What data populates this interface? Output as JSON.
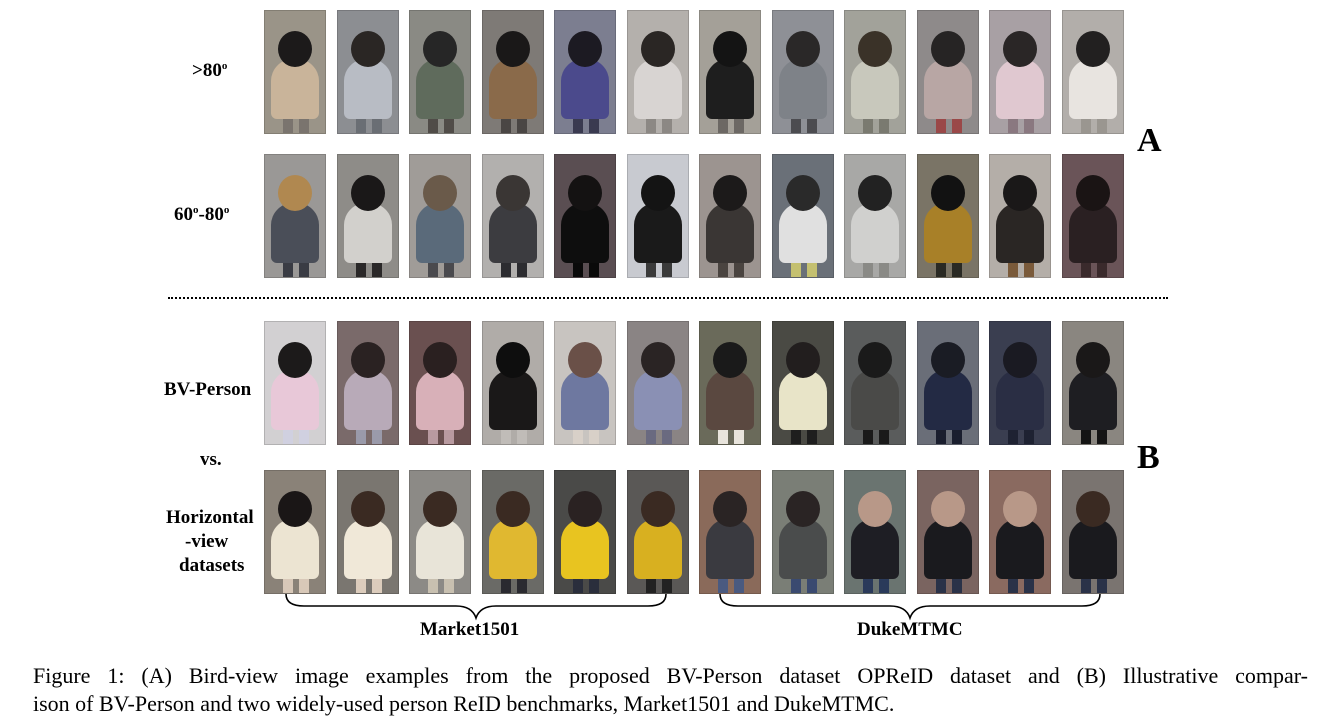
{
  "panel_a": {
    "letter": "A",
    "row1_label": ">80",
    "row1_sup": "o",
    "row2_label_a": "60",
    "row2_sup_a": "o",
    "row2_label_b": "-80",
    "row2_sup_b": "o"
  },
  "panel_b": {
    "letter": "B",
    "label_bv": "BV-Person",
    "label_vs": "vs.",
    "label_h1": "Horizontal",
    "label_h2": "-view",
    "label_h3": "datasets",
    "brace_left_label": "Market1501",
    "brace_right_label": "DukeMTMC"
  },
  "caption": {
    "line1": "Figure 1: (A) Bird-view image examples from the proposed BV-Person dataset OPReID dataset and (B) Illustrative compar-",
    "line2": "ison of BV-Person and two widely-used person ReID benchmarks, Market1501 and DukeMTMC."
  },
  "thumbnails": {
    "row_a1": [
      {
        "bg": "#9a9488",
        "head": "#1c1a1a",
        "body": "#c9b49a",
        "leg": "#7a746e"
      },
      {
        "bg": "#8c8e92",
        "head": "#2a2624",
        "body": "#b8bcc4",
        "leg": "#6a6e74"
      },
      {
        "bg": "#8a8a84",
        "head": "#262626",
        "body": "#5f6b5c",
        "leg": "#504c48"
      },
      {
        "bg": "#7e7a76",
        "head": "#1a1818",
        "body": "#8a6a4a",
        "leg": "#4a4644"
      },
      {
        "bg": "#7c7e90",
        "head": "#1c1a22",
        "body": "#4b4a8c",
        "leg": "#3a3a50"
      },
      {
        "bg": "#b4b0ac",
        "head": "#2a2624",
        "body": "#d8d4d2",
        "leg": "#8c8884"
      },
      {
        "bg": "#a4a098",
        "head": "#141414",
        "body": "#1e1e1e",
        "leg": "#6c6864"
      },
      {
        "bg": "#8e9096",
        "head": "#2a2828",
        "body": "#7e8288",
        "leg": "#4c4c50"
      },
      {
        "bg": "#a2a29a",
        "head": "#3a3228",
        "body": "#c8c8bc",
        "leg": "#7a7a70"
      },
      {
        "bg": "#8e8a8a",
        "head": "#262424",
        "body": "#b8a6a4",
        "leg": "#9a4848"
      },
      {
        "bg": "#a8a0a4",
        "head": "#2a2626",
        "body": "#e0c8d0",
        "leg": "#8a7880"
      },
      {
        "bg": "#b2aeaa",
        "head": "#222020",
        "body": "#e8e4e0",
        "leg": "#9a9690"
      }
    ],
    "row_a2": [
      {
        "bg": "#9a9896",
        "head": "#b08850",
        "body": "#4a4e58",
        "leg": "#3a3c44"
      },
      {
        "bg": "#8e8c88",
        "head": "#1a1818",
        "body": "#d2d0cc",
        "leg": "#2a2828"
      },
      {
        "bg": "#a09c98",
        "head": "#6a5a4a",
        "body": "#5a6a7a",
        "leg": "#4a4a4e"
      },
      {
        "bg": "#b2b0ae",
        "head": "#3a3634",
        "body": "#3c3c40",
        "leg": "#2c2c30"
      },
      {
        "bg": "#5a4e52",
        "head": "#141212",
        "body": "#0e0e0e",
        "leg": "#0a0a0a"
      },
      {
        "bg": "#c8cad0",
        "head": "#141414",
        "body": "#1a1a1a",
        "leg": "#3a3a3a"
      },
      {
        "bg": "#9c9490",
        "head": "#1c1a1a",
        "body": "#3a3634",
        "leg": "#4a4440"
      },
      {
        "bg": "#6a7078",
        "head": "#2a2a2a",
        "body": "#e0e0e0",
        "leg": "#c4c070"
      },
      {
        "bg": "#a8a8a6",
        "head": "#222222",
        "body": "#d0d0ce",
        "leg": "#8a8a86"
      },
      {
        "bg": "#7a7466",
        "head": "#121212",
        "body": "#a88028",
        "leg": "#2a2a24"
      },
      {
        "bg": "#b4aea8",
        "head": "#1a1818",
        "body": "#2a2624",
        "leg": "#7a5a3a"
      },
      {
        "bg": "#6a5458",
        "head": "#1a1414",
        "body": "#2a2022",
        "leg": "#3a2a2c"
      }
    ],
    "row_b1": [
      {
        "bg": "#d2d0d2",
        "head": "#1c1a1a",
        "body": "#e8c8d8",
        "leg": "#d0d0e0"
      },
      {
        "bg": "#7a6a6a",
        "head": "#2a2222",
        "body": "#b8aab8",
        "leg": "#9a9aaa"
      },
      {
        "bg": "#6a5050",
        "head": "#2a2020",
        "body": "#d8b0b8",
        "leg": "#b89aa0"
      },
      {
        "bg": "#b0aca8",
        "head": "#0e0e0e",
        "body": "#1a1818",
        "leg": "#c0bcb8"
      },
      {
        "bg": "#c8c4c0",
        "head": "#6a5048",
        "body": "#6e78a0",
        "leg": "#d8d0c8"
      },
      {
        "bg": "#8a8484",
        "head": "#2a2424",
        "body": "#8a90b4",
        "leg": "#6a6a80"
      },
      {
        "bg": "#6a6a5a",
        "head": "#1a1a1a",
        "body": "#5a4840",
        "leg": "#e8e4dc"
      },
      {
        "bg": "#4a4a44",
        "head": "#221e1e",
        "body": "#e8e4c8",
        "leg": "#1e1e1e"
      },
      {
        "bg": "#5a5c5c",
        "head": "#1a1a1a",
        "body": "#4a4a48",
        "leg": "#1a1a1a"
      },
      {
        "bg": "#6a6e78",
        "head": "#1a1c24",
        "body": "#232a44",
        "leg": "#1a1e2e"
      },
      {
        "bg": "#3a3e50",
        "head": "#1a1a22",
        "body": "#2a2e44",
        "leg": "#1e2232"
      },
      {
        "bg": "#8a8680",
        "head": "#1a1818",
        "body": "#1e1e22",
        "leg": "#141414"
      }
    ],
    "row_b2": [
      {
        "bg": "#8a8278",
        "head": "#1a1616",
        "body": "#ece4d2",
        "leg": "#d8c8b8"
      },
      {
        "bg": "#7a7670",
        "head": "#3a2a22",
        "body": "#f0e8d8",
        "leg": "#dcccbc"
      },
      {
        "bg": "#8c8a86",
        "head": "#3a2a22",
        "body": "#e8e4d8",
        "leg": "#c8c0b0"
      },
      {
        "bg": "#6a6a66",
        "head": "#3a2a22",
        "body": "#e0b830",
        "leg": "#2a2a30"
      },
      {
        "bg": "#4a4a48",
        "head": "#2a2222",
        "body": "#e8c420",
        "leg": "#2a2e3c"
      },
      {
        "bg": "#5a5856",
        "head": "#3a2a22",
        "body": "#d8b020",
        "leg": "#222222"
      },
      {
        "bg": "#8a6a5a",
        "head": "#2a2424",
        "body": "#3a3a40",
        "leg": "#4a5a80"
      },
      {
        "bg": "#7a7e76",
        "head": "#2a2424",
        "body": "#4a4c4c",
        "leg": "#3a4a70"
      },
      {
        "bg": "#6a7470",
        "head": "#b89888",
        "body": "#1e1e24",
        "leg": "#2a3a5a"
      },
      {
        "bg": "#7a6460",
        "head": "#b89888",
        "body": "#1a1a1e",
        "leg": "#2a3248"
      },
      {
        "bg": "#8a6a60",
        "head": "#b89888",
        "body": "#1a1a1e",
        "leg": "#2a3248"
      },
      {
        "bg": "#7a7470",
        "head": "#3a2a22",
        "body": "#1a1a1e",
        "leg": "#2a3248"
      }
    ]
  }
}
